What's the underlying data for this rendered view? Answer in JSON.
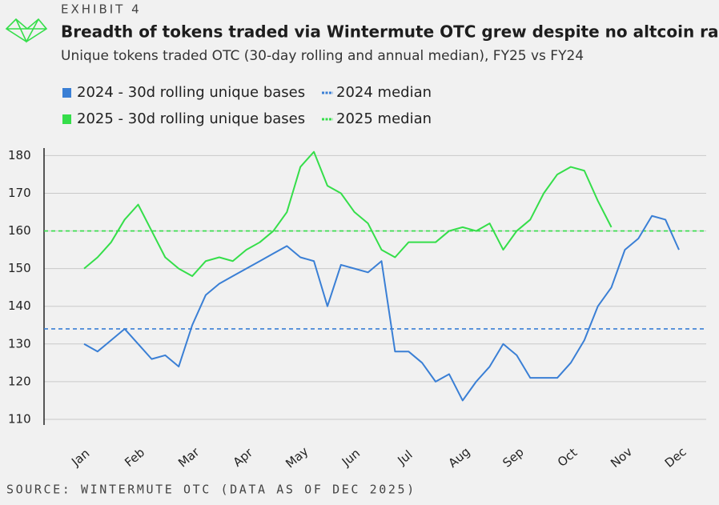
{
  "chart_data": {
    "type": "line",
    "exhibit": "EXHIBIT 4",
    "title": "Breadth of tokens traded via Wintermute OTC grew despite no altcoin rally",
    "subtitle": "Unique tokens traded OTC (30-day rolling and annual median), FY25 vs FY24",
    "source": "SOURCE: WINTERMUTE OTC (DATA AS OF DEC 2025)",
    "categories": [
      "Jan",
      null,
      null,
      null,
      "Feb",
      null,
      null,
      null,
      "Mar",
      null,
      null,
      null,
      "Apr",
      null,
      null,
      null,
      "May",
      null,
      null,
      null,
      "Jun",
      null,
      null,
      null,
      "Jul",
      null,
      null,
      null,
      "Aug",
      null,
      null,
      null,
      "Sep",
      null,
      null,
      null,
      "Oct",
      null,
      null,
      null,
      "Nov",
      null,
      null,
      null,
      "Dec"
    ],
    "series": [
      {
        "name": "2024 - 30d rolling unique bases",
        "color": "#3a7fd5",
        "values": [
          130,
          128,
          131,
          134,
          130,
          126,
          127,
          124,
          135,
          143,
          146,
          148,
          150,
          152,
          154,
          156,
          153,
          152,
          140,
          151,
          150,
          149,
          152,
          128,
          128,
          125,
          120,
          122,
          115,
          120,
          124,
          130,
          127,
          121,
          121,
          121,
          125,
          131,
          140,
          145,
          155,
          158,
          164,
          163,
          155
        ]
      },
      {
        "name": "2025 - 30d rolling unique bases",
        "color": "#35de4a",
        "values": [
          150,
          153,
          157,
          163,
          167,
          160,
          153,
          150,
          148,
          152,
          153,
          152,
          155,
          157,
          160,
          165,
          177,
          181,
          172,
          170,
          165,
          162,
          155,
          153,
          157,
          157,
          157,
          160,
          161,
          160,
          162,
          155,
          160,
          163,
          170,
          175,
          177,
          176,
          168,
          161,
          null,
          null,
          null,
          null,
          null
        ]
      }
    ],
    "medians": [
      {
        "name": "2024 median",
        "color": "#3a7fd5",
        "value": 134
      },
      {
        "name": "2025 median",
        "color": "#35de4a",
        "value": 160
      }
    ],
    "ylim": [
      108.5,
      182
    ],
    "yticks": [
      110,
      120,
      130,
      140,
      150,
      160,
      170,
      180
    ],
    "grid": true
  }
}
